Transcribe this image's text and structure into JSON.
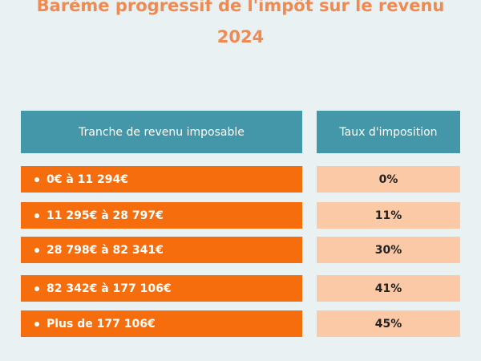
{
  "title": {
    "line1": "Barème progressif de l'impôt sur le revenu",
    "line2": "2024"
  },
  "table": {
    "headers": {
      "bracket": "Tranche de revenu imposable",
      "rate": "Taux d'imposition"
    },
    "rows": [
      {
        "bracket": "0€ à 11 294€",
        "rate": "0%"
      },
      {
        "bracket": "11 295€ à 28 797€",
        "rate": "11%"
      },
      {
        "bracket": "28 798€ à 82 341€",
        "rate": "30%"
      },
      {
        "bracket": "82 342€ à 177 106€",
        "rate": "41%"
      },
      {
        "bracket": "Plus de 177 106€",
        "rate": "45%"
      }
    ]
  },
  "colors": {
    "title": "#ee8a52",
    "header": "#4397a8",
    "bracket_cell": "#f56d0d",
    "rate_cell": "#fbc9a6",
    "background": "#eaf1f3"
  }
}
